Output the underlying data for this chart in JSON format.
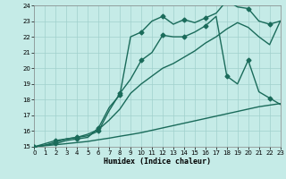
{
  "xlabel": "Humidex (Indice chaleur)",
  "xlim": [
    0,
    23
  ],
  "ylim": [
    15,
    24
  ],
  "xticks": [
    0,
    1,
    2,
    3,
    4,
    5,
    6,
    7,
    8,
    9,
    10,
    11,
    12,
    13,
    14,
    15,
    16,
    17,
    18,
    19,
    20,
    21,
    22,
    23
  ],
  "yticks": [
    15,
    16,
    17,
    18,
    19,
    20,
    21,
    22,
    23,
    24
  ],
  "bg_color": "#c5ebe7",
  "grid_color": "#a0d0cc",
  "line_color": "#1a6b5a",
  "line1_x": [
    0,
    1,
    2,
    3,
    4,
    5,
    6,
    7,
    8,
    9,
    10,
    11,
    12,
    13,
    14,
    15,
    16,
    17,
    18,
    19,
    20,
    21,
    22,
    23
  ],
  "line1_y": [
    15.0,
    15.07,
    15.13,
    15.2,
    15.27,
    15.34,
    15.45,
    15.55,
    15.67,
    15.78,
    15.9,
    16.05,
    16.2,
    16.35,
    16.5,
    16.65,
    16.8,
    16.95,
    17.1,
    17.25,
    17.4,
    17.55,
    17.65,
    17.75
  ],
  "line2_x": [
    0,
    1,
    2,
    3,
    4,
    5,
    6,
    7,
    8,
    9,
    10,
    11,
    12,
    13,
    14,
    15,
    16,
    17,
    18,
    19,
    20,
    21,
    22,
    23
  ],
  "line2_y": [
    15.0,
    15.1,
    15.3,
    15.5,
    15.6,
    15.8,
    16.1,
    16.7,
    17.4,
    18.4,
    19.0,
    19.5,
    20.0,
    20.3,
    20.7,
    21.1,
    21.6,
    22.0,
    22.5,
    22.9,
    22.6,
    22.0,
    21.5,
    23.0
  ],
  "line3_x": [
    0,
    1,
    2,
    3,
    4,
    5,
    6,
    7,
    8,
    9,
    10,
    11,
    12,
    13,
    14,
    15,
    16,
    17,
    18,
    19,
    20,
    21,
    22,
    23
  ],
  "line3_y": [
    15.0,
    15.2,
    15.4,
    15.5,
    15.6,
    15.7,
    16.0,
    17.3,
    18.4,
    19.3,
    20.5,
    21.0,
    22.1,
    22.0,
    22.0,
    22.3,
    22.7,
    23.3,
    19.5,
    19.0,
    20.5,
    18.5,
    18.1,
    17.7
  ],
  "line4_x": [
    0,
    1,
    2,
    3,
    4,
    5,
    6,
    7,
    8,
    9,
    10,
    11,
    12,
    13,
    14,
    15,
    16,
    17,
    18,
    19,
    20,
    21,
    22,
    23
  ],
  "line4_y": [
    15.0,
    15.1,
    15.2,
    15.4,
    15.5,
    15.6,
    16.2,
    17.5,
    18.3,
    22.0,
    22.3,
    23.0,
    23.3,
    22.8,
    23.1,
    22.9,
    23.2,
    23.5,
    24.3,
    23.9,
    23.8,
    23.0,
    22.8,
    23.0
  ],
  "marker": "D",
  "marker_size": 2.5,
  "linewidth": 1.0
}
